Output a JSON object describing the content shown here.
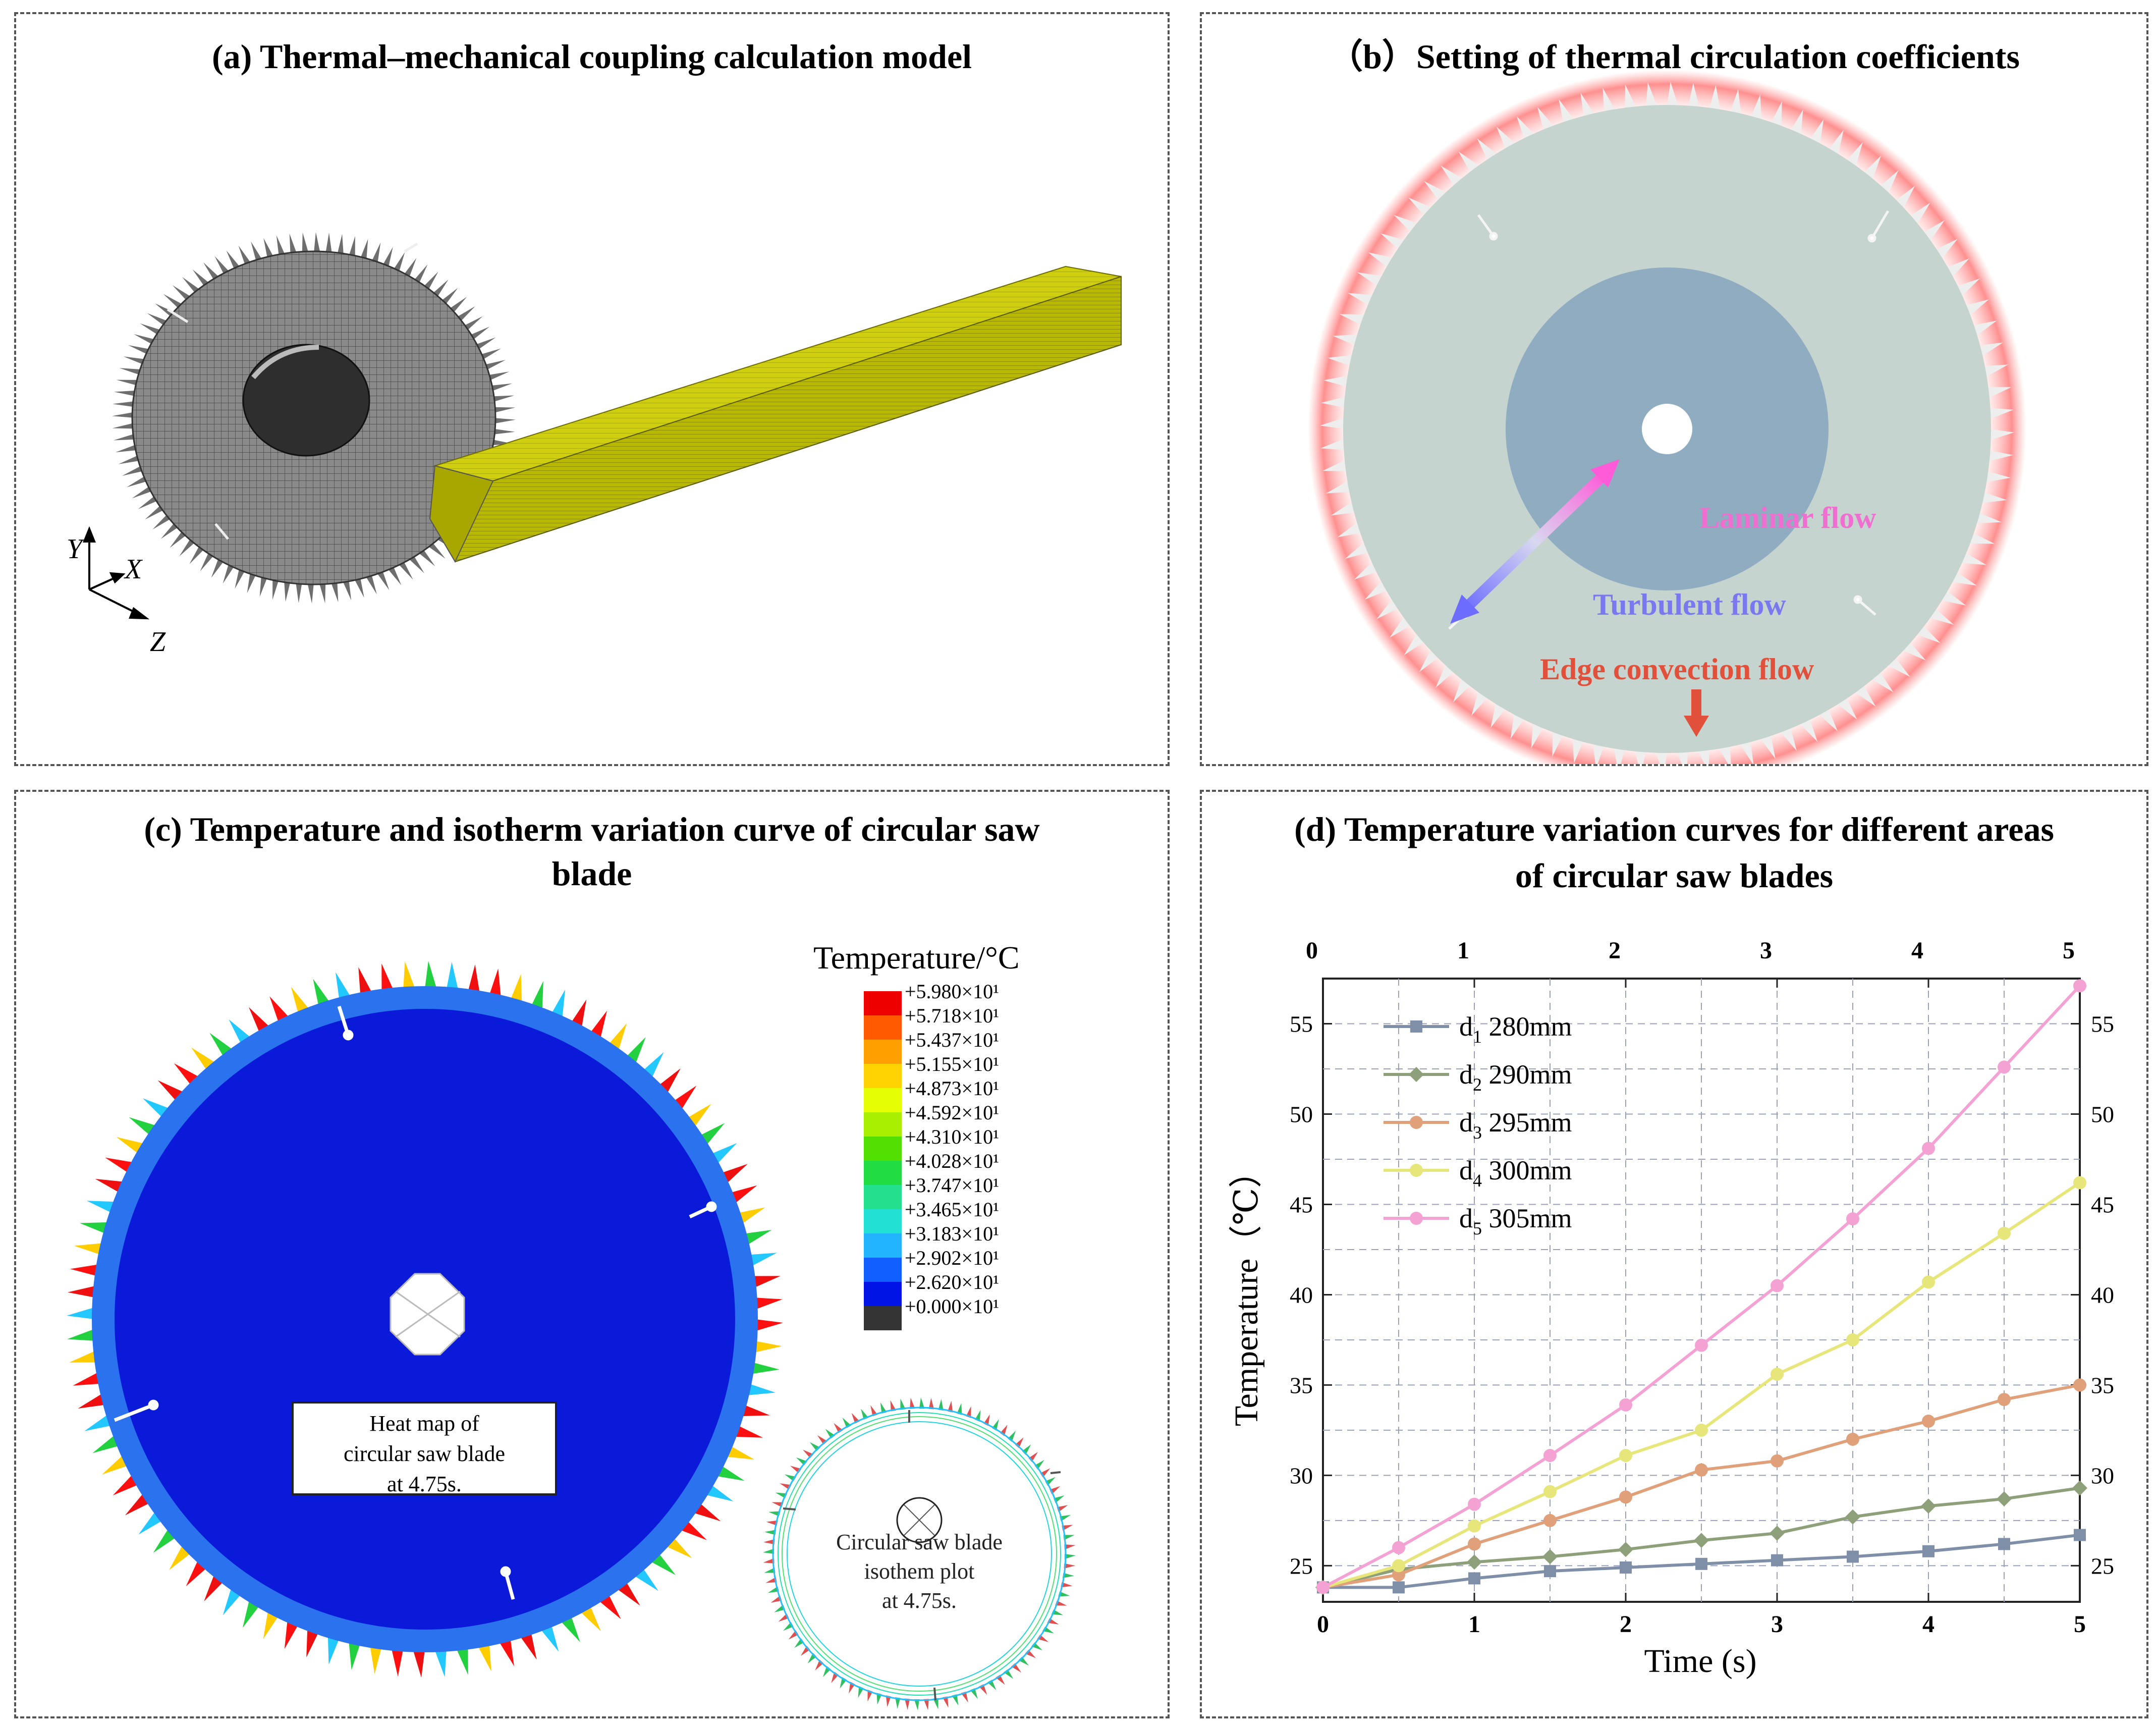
{
  "panel_a": {
    "title": "(a) Thermal–mechanical coupling calculation model",
    "axes": {
      "y": "Y",
      "x": "X",
      "z": "Z"
    }
  },
  "panel_b": {
    "title": "（b）Setting of thermal circulation coefficients",
    "laminar_label": "Laminar flow",
    "turbulent_label": "Turbulent flow",
    "edge_label": "Edge convection flow",
    "colors": {
      "laminar": "#ee6fd0",
      "turbulent": "#7a78ee",
      "edge": "#e0503a",
      "inner_disc": "#8facc0",
      "outer_disc": "#c6d4d0"
    }
  },
  "panel_c": {
    "title_line1": "(c)  Temperature and isotherm variation curve of circular saw",
    "title_line2": "blade",
    "legend_title": "Temperature/°C",
    "legend_values": [
      "+5.980×10¹",
      "+5.718×10¹",
      "+5.437×10¹",
      "+5.155×10¹",
      "+4.873×10¹",
      "+4.592×10¹",
      "+4.310×10¹",
      "+4.028×10¹",
      "+3.747×10¹",
      "+3.465×10¹",
      "+3.183×10¹",
      "+2.902×10¹",
      "+2.620×10¹",
      "+0.000×10¹"
    ],
    "legend_colors": [
      "#ee0000",
      "#ff5a00",
      "#ffa000",
      "#ffd200",
      "#e6ff00",
      "#a8f000",
      "#52e000",
      "#22dc44",
      "#22e08e",
      "#22e0d4",
      "#22b4ff",
      "#1060ff",
      "#0014e6",
      "#333333"
    ],
    "heatmap_label": [
      "Heat map of",
      "circular saw blade",
      "at 4.75s."
    ],
    "isotherm_label": [
      "Circular saw blade",
      "isothem plot",
      "at 4.75s."
    ]
  },
  "panel_d": {
    "title_line1": "(d) Temperature variation curves for different areas",
    "title_line2": "of circular saw blades"
  },
  "chart_data": {
    "type": "line",
    "xlabel": "Time (s)",
    "ylabel": "Temperature（℃）",
    "xlim": [
      0,
      5
    ],
    "ylim": [
      23,
      57.5
    ],
    "x_ticks": [
      0,
      1,
      2,
      3,
      4,
      5
    ],
    "y_ticks": [
      25,
      30,
      35,
      40,
      45,
      50,
      55
    ],
    "legend_position": "top-left",
    "grid": true,
    "x": [
      0,
      0.5,
      1,
      1.5,
      2,
      2.5,
      3,
      3.5,
      4,
      4.5,
      5
    ],
    "series": [
      {
        "name": "d1 280mm",
        "name_main": "d",
        "name_sub": "1",
        "name_rest": " 280mm",
        "color": "#7f8fa8",
        "marker": "square",
        "values": [
          23.8,
          23.8,
          24.3,
          24.7,
          24.9,
          25.1,
          25.3,
          25.5,
          25.8,
          26.2,
          26.7
        ]
      },
      {
        "name": "d2 290mm",
        "name_main": "d",
        "name_sub": "2",
        "name_rest": " 290mm",
        "color": "#8ea07a",
        "marker": "diamond",
        "values": [
          23.8,
          24.8,
          25.2,
          25.5,
          25.9,
          26.4,
          26.8,
          27.7,
          28.3,
          28.7,
          29.3
        ]
      },
      {
        "name": "d3 295mm",
        "name_main": "d",
        "name_sub": "3",
        "name_rest": " 295mm",
        "color": "#e0a07a",
        "marker": "circle",
        "values": [
          23.8,
          24.5,
          26.2,
          27.5,
          28.8,
          30.3,
          30.8,
          32.0,
          33.0,
          34.2,
          35.0
        ]
      },
      {
        "name": "d4 300mm",
        "name_main": "d",
        "name_sub": "4",
        "name_rest": " 300mm",
        "color": "#e6e67a",
        "marker": "circle",
        "values": [
          23.8,
          25.0,
          27.2,
          29.1,
          31.1,
          32.5,
          35.6,
          37.5,
          40.7,
          43.4,
          46.2
        ]
      },
      {
        "name": "d5 305mm",
        "name_main": "d",
        "name_sub": "5",
        "name_rest": " 305mm",
        "color": "#f4a2d4",
        "marker": "circle",
        "values": [
          23.8,
          26.0,
          28.4,
          31.1,
          33.9,
          37.2,
          40.5,
          44.2,
          48.1,
          52.6,
          57.1
        ]
      }
    ]
  }
}
